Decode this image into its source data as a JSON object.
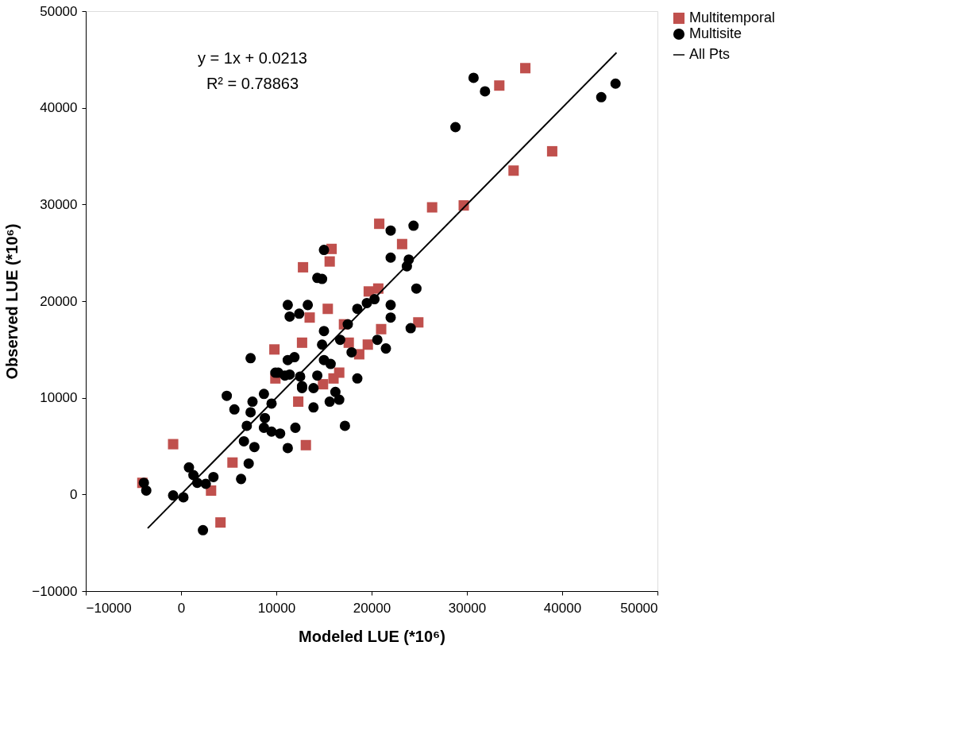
{
  "chart_data": {
    "type": "scatter",
    "xlabel": "Modeled LUE  (*10⁶)",
    "ylabel": "Observed LUE (*10⁶)",
    "annotations": [
      "y = 1x + 0.0213",
      "R² = 0.78863"
    ],
    "xlim": [
      -10000,
      50000
    ],
    "xticks": [
      -10000,
      0,
      10000,
      20000,
      30000,
      40000,
      50000
    ],
    "ylim": [
      -10000,
      50000
    ],
    "yticks": [
      -10000,
      0,
      10000,
      20000,
      30000,
      40000,
      50000
    ],
    "grid": false,
    "legend": "right",
    "series": [
      {
        "name": "Multitemporal",
        "color": "#c0504d",
        "marker": "square",
        "x": [
          -4060,
          -830,
          5400,
          3150,
          4140,
          13100,
          12300,
          36130,
          33400,
          38950,
          34900,
          29670,
          26350,
          20800,
          23200,
          15800,
          15600,
          20700,
          19700,
          15400,
          24900,
          21000,
          17100,
          17600,
          19600,
          12800,
          13500,
          9800,
          12700,
          9900,
          16600,
          18700,
          14900,
          16000
        ],
        "values": [
          1200,
          5200,
          3300,
          400,
          -2900,
          5100,
          9600,
          44100,
          42300,
          35500,
          33500,
          29900,
          29700,
          28000,
          25900,
          25400,
          24100,
          21300,
          21000,
          19200,
          17800,
          17100,
          17600,
          15700,
          15500,
          23500,
          18300,
          15000,
          15700,
          12000,
          12600,
          14500,
          11400,
          12000
        ]
      },
      {
        "name": "Multisite",
        "color": "#000000",
        "marker": "circle",
        "x": [
          4800,
          5600,
          7500,
          8700,
          9500,
          7300,
          8800,
          6900,
          8700,
          9500,
          10400,
          12000,
          6600,
          7700,
          11200,
          7100,
          6300,
          830,
          1300,
          1700,
          2600,
          3400,
          -830,
          250,
          -3900,
          -3650,
          2300,
          13900,
          12700,
          10200,
          11400,
          15000,
          14300,
          22000,
          23900,
          23700,
          24700,
          24100,
          11200,
          13300,
          11400,
          12400,
          15000,
          17500,
          18500,
          19500,
          20300,
          22000,
          22000,
          14800,
          16700,
          20600,
          21500,
          7300,
          11200,
          11900,
          17900,
          15000,
          15700,
          9900,
          10900,
          12500,
          14300,
          12700,
          13900,
          18500,
          16200,
          16600,
          15600,
          17200,
          30700,
          31900,
          28800,
          45600,
          44100,
          24400,
          22000,
          14800
        ],
        "values": [
          10200,
          8800,
          9600,
          10400,
          9400,
          8500,
          7900,
          7100,
          6900,
          6500,
          6300,
          6900,
          5500,
          4900,
          4800,
          3200,
          1600,
          2800,
          2000,
          1200,
          1100,
          1800,
          -100,
          -300,
          1200,
          400,
          -3700,
          9000,
          11200,
          12600,
          12400,
          25300,
          22400,
          24500,
          24300,
          23600,
          21300,
          17200,
          19600,
          19600,
          18400,
          18700,
          16900,
          17600,
          19200,
          19800,
          20200,
          19600,
          18300,
          15500,
          16000,
          16000,
          15100,
          14100,
          13900,
          14200,
          14700,
          13900,
          13500,
          12600,
          12300,
          12200,
          12300,
          11000,
          11000,
          12000,
          10600,
          9800,
          9600,
          7100,
          43100,
          41700,
          38000,
          42500,
          41100,
          27800,
          27300,
          22300
        ]
      },
      {
        "name": "All Pts",
        "type": "line",
        "color": "#000000",
        "marker": "none",
        "line_style": "solid",
        "x": [
          -3500,
          45700
        ],
        "values": [
          -3500,
          45700
        ]
      }
    ]
  }
}
